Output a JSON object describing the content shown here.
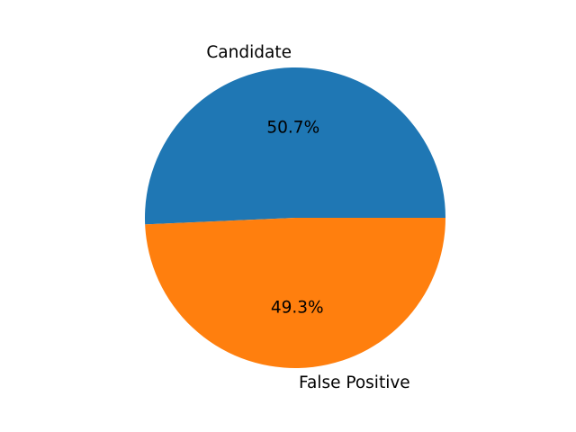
{
  "chart_data": {
    "type": "pie",
    "slices": [
      {
        "label": "Candidate",
        "value": 50.7,
        "pct_label": "50.7%",
        "color": "#1f77b4"
      },
      {
        "label": "False Positive",
        "value": 49.3,
        "pct_label": "49.3%",
        "color": "#ff7f0e"
      }
    ],
    "start_angle_deg": 0,
    "direction": "counterclockwise",
    "title": ""
  }
}
